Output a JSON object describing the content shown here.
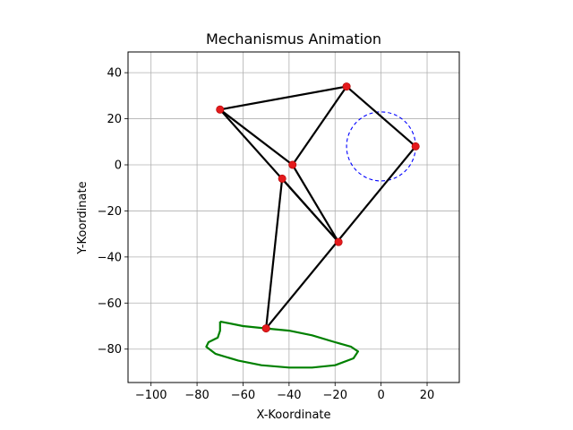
{
  "chart_data": {
    "type": "scatter",
    "title": "Mechanismus Animation",
    "xlabel": "X-Koordinate",
    "ylabel": "Y-Koordinate",
    "xlim": [
      -110,
      34
    ],
    "ylim": [
      -94.5,
      49
    ],
    "grid": true,
    "equal_aspect": true,
    "xticks": [
      -100,
      -80,
      -60,
      -40,
      -20,
      0,
      20
    ],
    "yticks": [
      -80,
      -60,
      -40,
      -20,
      0,
      20,
      40
    ],
    "xtick_labels": [
      "−100",
      "−80",
      "−60",
      "−40",
      "−20",
      "0",
      "20"
    ],
    "ytick_labels": [
      "−80",
      "−60",
      "−40",
      "−20",
      "0",
      "20",
      "40"
    ],
    "joints": [
      {
        "id": "A",
        "x": -70,
        "y": 24
      },
      {
        "id": "B",
        "x": -15,
        "y": 34
      },
      {
        "id": "C",
        "x": 15,
        "y": 8
      },
      {
        "id": "D",
        "x": -38.5,
        "y": 0
      },
      {
        "id": "E",
        "x": -43,
        "y": -6
      },
      {
        "id": "F",
        "x": -18.5,
        "y": -33.5
      },
      {
        "id": "G",
        "x": -50,
        "y": -71
      }
    ],
    "links": [
      [
        "A",
        "B"
      ],
      [
        "B",
        "C"
      ],
      [
        "B",
        "D"
      ],
      [
        "A",
        "D"
      ],
      [
        "A",
        "F"
      ],
      [
        "D",
        "F"
      ],
      [
        "E",
        "G"
      ],
      [
        "E",
        "F"
      ],
      [
        "C",
        "G"
      ]
    ],
    "crank_circle": {
      "cx": 0,
      "cy": 8,
      "r": 15,
      "color": "#0000ff",
      "style": "dashed"
    },
    "trajectory": {
      "color": "#008000",
      "points": [
        [
          -70,
          -68
        ],
        [
          -60,
          -70
        ],
        [
          -50,
          -71
        ],
        [
          -40,
          -72
        ],
        [
          -30,
          -74
        ],
        [
          -20,
          -77
        ],
        [
          -13,
          -79
        ],
        [
          -10,
          -81
        ],
        [
          -12,
          -84
        ],
        [
          -20,
          -87
        ],
        [
          -30,
          -88
        ],
        [
          -40,
          -88
        ],
        [
          -52,
          -87
        ],
        [
          -62,
          -85
        ],
        [
          -72,
          -82
        ],
        [
          -76,
          -79
        ],
        [
          -75,
          -77
        ],
        [
          -71,
          -75
        ],
        [
          -70,
          -72
        ],
        [
          -70,
          -68
        ]
      ]
    },
    "colors": {
      "link": "#000000",
      "joint": "#e41a1c",
      "grid": "#b0b0b0"
    }
  }
}
